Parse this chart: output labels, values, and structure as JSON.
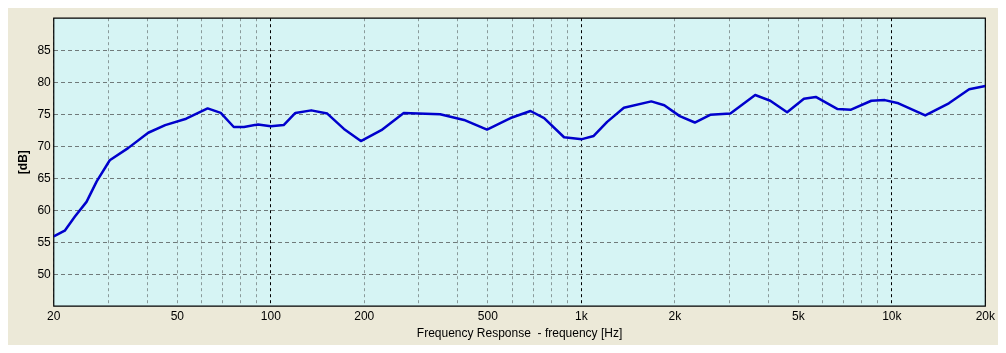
{
  "chart_data": {
    "type": "line",
    "xlabel": "Frequency Response  - frequency [Hz]",
    "ylabel": "[dB]",
    "log": "x",
    "grid": true,
    "legend": false,
    "marker": "none",
    "line_style": "solid",
    "xlim": [
      20,
      20000
    ],
    "ylim": [
      45,
      90
    ],
    "xticks": [
      20,
      {
        "value": 30,
        "label": null
      },
      {
        "value": 40,
        "label": null
      },
      50,
      {
        "value": 60,
        "label": null
      },
      {
        "value": 70,
        "label": null
      },
      {
        "value": 80,
        "label": null
      },
      {
        "value": 90,
        "label": null
      },
      100,
      200,
      {
        "value": 300,
        "label": null
      },
      {
        "value": 400,
        "label": null
      },
      500,
      {
        "value": 600,
        "label": null
      },
      {
        "value": 700,
        "label": null
      },
      {
        "value": 800,
        "label": null
      },
      {
        "value": 900,
        "label": null
      },
      {
        "value": 1000,
        "label": "1k"
      },
      {
        "value": 2000,
        "label": "2k"
      },
      {
        "value": 3000,
        "label": null
      },
      {
        "value": 4000,
        "label": null
      },
      {
        "value": 5000,
        "label": "5k"
      },
      {
        "value": 6000,
        "label": null
      },
      {
        "value": 7000,
        "label": null
      },
      {
        "value": 8000,
        "label": null
      },
      {
        "value": 9000,
        "label": null
      },
      {
        "value": 10000,
        "label": "10k"
      },
      {
        "value": 20000,
        "label": "20k"
      }
    ],
    "yticks": [
      50,
      55,
      60,
      65,
      70,
      75,
      80,
      85
    ],
    "series": [
      {
        "color": "#0000cc",
        "x": [
          20,
          21.7,
          23.4,
          25.5,
          27.5,
          30.3,
          34.7,
          40.3,
          45.7,
          53.4,
          62.6,
          69,
          76,
          82,
          91,
          100,
          110,
          120,
          135,
          152,
          172,
          195,
          227,
          268,
          351,
          419,
          497,
          592,
          686,
          759,
          880,
          1005,
          1096,
          1211,
          1371,
          1680,
          1850,
          2075,
          2320,
          2600,
          3020,
          3630,
          4060,
          4600,
          5210,
          5690,
          6690,
          7390,
          8590,
          9490,
          10500,
          12810,
          15260,
          17740,
          20000
        ],
        "values": [
          55.9,
          56.8,
          59.0,
          61.3,
          64.5,
          67.8,
          69.7,
          72.1,
          73.3,
          74.3,
          75.9,
          75.2,
          73.0,
          73.0,
          73.4,
          73.1,
          73.3,
          75.2,
          75.6,
          75.1,
          72.7,
          70.8,
          72.5,
          75.2,
          75.0,
          74.1,
          72.6,
          74.4,
          75.5,
          74.4,
          71.4,
          71.1,
          71.6,
          73.8,
          76.0,
          77.0,
          76.4,
          74.7,
          73.7,
          74.9,
          75.1,
          78.0,
          77.1,
          75.3,
          77.4,
          77.7,
          75.8,
          75.7,
          77.1,
          77.2,
          76.7,
          74.8,
          76.7,
          78.9,
          79.4
        ]
      }
    ]
  }
}
